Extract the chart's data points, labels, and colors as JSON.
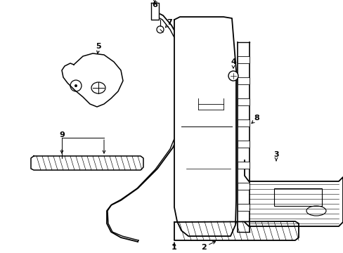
{
  "background_color": "#ffffff",
  "line_color": "#000000",
  "figsize": [
    4.89,
    3.6
  ],
  "dpi": 100,
  "seal_outer": {
    "x": [
      2.05,
      2.12,
      2.18,
      2.28,
      2.38,
      2.45,
      2.5,
      2.52,
      2.52,
      2.48,
      2.38,
      2.22,
      2.05,
      1.92,
      1.85,
      1.82,
      1.82,
      1.88,
      2.05
    ],
    "y": [
      3.38,
      3.4,
      3.38,
      3.3,
      3.18,
      3.05,
      2.88,
      2.65,
      2.35,
      2.05,
      1.65,
      1.25,
      0.88,
      0.62,
      0.48,
      0.55,
      1.2,
      2.1,
      3.38
    ]
  },
  "seal_inner": {
    "x": [
      2.05,
      2.12,
      2.18,
      2.27,
      2.36,
      2.42,
      2.46,
      2.47,
      2.47,
      2.44,
      2.34,
      2.19,
      2.03,
      1.9,
      1.83,
      1.81,
      1.81,
      1.86,
      2.05
    ],
    "y": [
      3.33,
      3.35,
      3.33,
      3.26,
      3.14,
      3.01,
      2.85,
      2.63,
      2.33,
      2.04,
      1.65,
      1.26,
      0.91,
      0.66,
      0.53,
      0.58,
      1.2,
      2.09,
      3.33
    ]
  }
}
